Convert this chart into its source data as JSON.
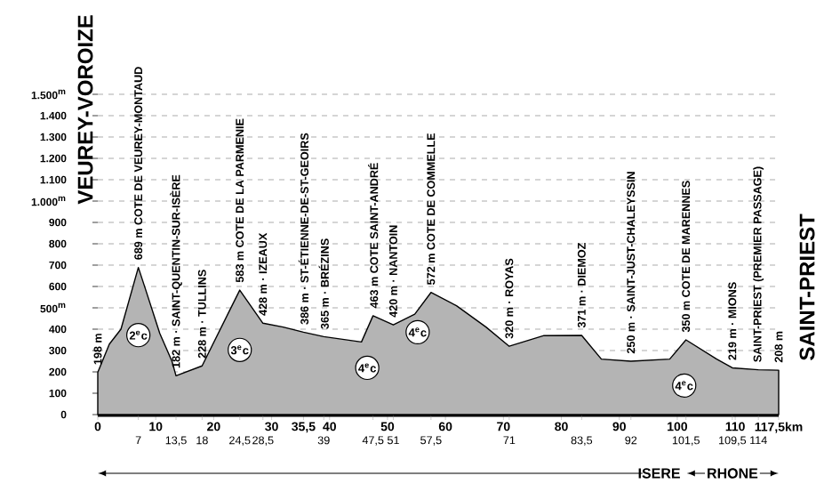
{
  "chart_data": {
    "type": "area",
    "xlim": [
      0,
      117.5
    ],
    "ylim": [
      0,
      1500
    ],
    "xticks": [
      0,
      10,
      20,
      30,
      {
        "value": 35.5,
        "label": "35,5"
      },
      40,
      50,
      60,
      70,
      80,
      90,
      100,
      110,
      {
        "value": 117.5,
        "label": "117,5km"
      }
    ],
    "x2lim": [
      0,
      117.5
    ],
    "x2ticks": [
      7,
      {
        "value": 13.5,
        "label": "13,5"
      },
      18,
      {
        "value": 24.5,
        "label": "24,5"
      },
      {
        "value": 28.5,
        "label": "28,5"
      },
      39,
      {
        "value": 47.5,
        "label": "47,5"
      },
      51,
      {
        "value": 57.5,
        "label": "57,5"
      },
      71,
      {
        "value": 83.5,
        "label": "83,5"
      },
      92,
      {
        "value": 101.5,
        "label": "101,5"
      },
      {
        "value": 109.5,
        "label": "109,5"
      },
      114
    ],
    "yticks": [
      {
        "value": 0,
        "label": "0"
      },
      100,
      200,
      300,
      400,
      {
        "value": 500,
        "label": "500$^{m}$"
      },
      600,
      700,
      800,
      900,
      {
        "value": 1000,
        "label": "1.000$^{m}$"
      },
      {
        "value": 1100,
        "label": "1.100"
      },
      {
        "value": 1200,
        "label": "1.200"
      },
      {
        "value": 1300,
        "label": "1.300"
      },
      {
        "value": 1400,
        "label": "1.400"
      },
      {
        "value": 1500,
        "label": "1.500$^{m}$"
      }
    ],
    "grid": "y",
    "series": [
      {
        "color": "#b4b4b4",
        "x": [
          0,
          2,
          4,
          7,
          8.2,
          10.7,
          12.8,
          13.5,
          18,
          24.5,
          28.5,
          32,
          35.5,
          39,
          45.5,
          47.5,
          51,
          54.7,
          57.5,
          61.9,
          67,
          71,
          77,
          83.5,
          86.9,
          92,
          98.7,
          101.5,
          106.8,
          109.5,
          114,
          117.5
        ],
        "values": [
          198,
          330,
          400,
          689,
          590,
          380,
          250,
          182,
          228,
          583,
          428,
          410,
          386,
          365,
          340,
          463,
          420,
          470,
          572,
          510,
          410,
          320,
          370,
          371,
          260,
          250,
          260,
          350,
          260,
          219,
          210,
          208
        ],
        "value_labels": [
          "198 m",
          null,
          null,
          "689 m COTE DE VEUREY-MONTAUD",
          null,
          null,
          null,
          "182 m · SAINT-QUENTIN-SUR-ISÈRE",
          "228 m · TULLINS",
          "583 m COTE DE LA PARMENIE",
          "428 m · IZEAUX",
          null,
          "386 m · ST-ÉTIENNE-DE-ST-GEOIRS",
          "365 m · BRÉZINS",
          null,
          "463 m COTE SAINT-ANDRÉ",
          "420 m · NANTOIN",
          null,
          "572 m COTE DE COMMELLE",
          null,
          null,
          "320 m · ROYAS",
          null,
          "371 m · DIEMOZ",
          null,
          "250 m · SAINT-JUST-CHALEYSSIN",
          null,
          "350 m COTE DE MARENNES",
          null,
          "219 m · MIONS",
          "SAINT-PRIEST (PREMIER PASSAGE)",
          "208 m"
        ]
      }
    ],
    "annotations": [
      "VEUREY-VOROIZE",
      "SAINT-PRIEST",
      "ISERE",
      "RHONE",
      {
        "text": "2$^{e}$c",
        "x": 7,
        "y": 372
      },
      {
        "text": "3$^{e}$c",
        "x": 24.5,
        "y": 303
      },
      {
        "text": "4$^{e}$c",
        "x": 46.5,
        "y": 219
      },
      {
        "text": "4$^{e}$c",
        "x": 55.2,
        "y": 386
      },
      {
        "text": "4$^{e}$c",
        "x": 101.2,
        "y": 136
      }
    ]
  }
}
